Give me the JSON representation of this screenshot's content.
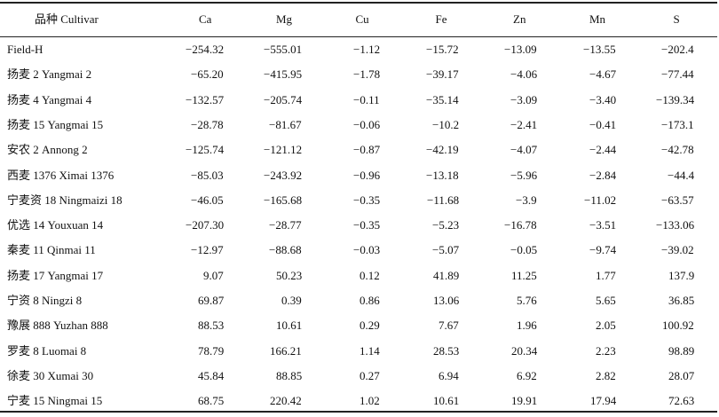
{
  "table": {
    "header": [
      "品种 Cultivar",
      "Ca",
      "Mg",
      "Cu",
      "Fe",
      "Zn",
      "Mn",
      "S"
    ],
    "rows": [
      [
        "Field-H",
        "−254.32",
        "−555.01",
        "−1.12",
        "−15.72",
        "−13.09",
        "−13.55",
        "−202.4"
      ],
      [
        "扬麦 2 Yangmai 2",
        "−65.20",
        "−415.95",
        "−1.78",
        "−39.17",
        "−4.06",
        "−4.67",
        "−77.44"
      ],
      [
        "扬麦 4 Yangmai 4",
        "−132.57",
        "−205.74",
        "−0.11",
        "−35.14",
        "−3.09",
        "−3.40",
        "−139.34"
      ],
      [
        "扬麦 15 Yangmai 15",
        "−28.78",
        "−81.67",
        "−0.06",
        "−10.2",
        "−2.41",
        "−0.41",
        "−173.1"
      ],
      [
        "安农 2 Annong 2",
        "−125.74",
        "−121.12",
        "−0.87",
        "−42.19",
        "−4.07",
        "−2.44",
        "−42.78"
      ],
      [
        "西麦 1376 Ximai 1376",
        "−85.03",
        "−243.92",
        "−0.96",
        "−13.18",
        "−5.96",
        "−2.84",
        "−44.4"
      ],
      [
        "宁麦资 18 Ningmaizi 18",
        "−46.05",
        "−165.68",
        "−0.35",
        "−11.68",
        "−3.9",
        "−11.02",
        "−63.57"
      ],
      [
        "优选 14 Youxuan 14",
        "−207.30",
        "−28.77",
        "−0.35",
        "−5.23",
        "−16.78",
        "−3.51",
        "−133.06"
      ],
      [
        "秦麦 11 Qinmai 11",
        "−12.97",
        "−88.68",
        "−0.03",
        "−5.07",
        "−0.05",
        "−9.74",
        "−39.02"
      ],
      [
        "扬麦 17 Yangmai 17",
        "9.07",
        "50.23",
        "0.12",
        "41.89",
        "11.25",
        "1.77",
        "137.9"
      ],
      [
        "宁资 8 Ningzi 8",
        "69.87",
        "0.39",
        "0.86",
        "13.06",
        "5.76",
        "5.65",
        "36.85"
      ],
      [
        "豫展 888 Yuzhan 888",
        "88.53",
        "10.61",
        "0.29",
        "7.67",
        "1.96",
        "2.05",
        "100.92"
      ],
      [
        "罗麦 8 Luomai 8",
        "78.79",
        "166.21",
        "1.14",
        "28.53",
        "20.34",
        "2.23",
        "98.89"
      ],
      [
        "徐麦 30 Xumai 30",
        "45.84",
        "88.85",
        "0.27",
        "6.94",
        "6.92",
        "2.82",
        "28.07"
      ],
      [
        "宁麦 15 Ningmai 15",
        "68.75",
        "220.42",
        "1.02",
        "10.61",
        "19.91",
        "17.94",
        "72.63"
      ]
    ]
  }
}
